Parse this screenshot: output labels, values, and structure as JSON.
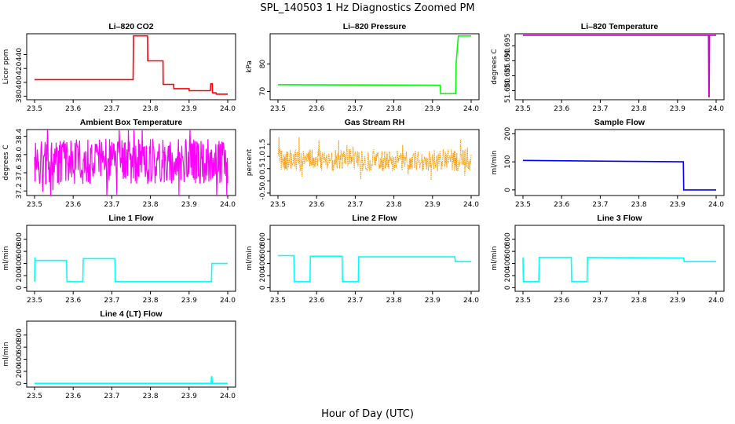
{
  "page": {
    "title": "SPL_140503  1 Hz Diagnostics Zoomed PM",
    "xlabel": "Hour of Day (UTC)"
  },
  "chart_data": [
    {
      "id": "co2",
      "type": "line",
      "title": "Li–820 CO2",
      "ylabel": "Licor ppm",
      "color": "#ff0000",
      "xlim": [
        23.5,
        24.0
      ],
      "ylim": [
        375,
        470
      ],
      "xticks": [
        23.5,
        23.6,
        23.7,
        23.8,
        23.9,
        24.0
      ],
      "yticks": [
        380,
        400,
        420,
        440
      ],
      "series": [
        {
          "x": [
            23.5,
            23.755,
            23.756,
            23.7925,
            23.793,
            23.8325,
            23.833,
            23.86,
            23.8605,
            23.9,
            23.9005,
            23.955,
            23.956,
            23.96,
            23.9605,
            23.97,
            23.9705,
            24.0
          ],
          "y": [
            404,
            404,
            467,
            467,
            431,
            431,
            397,
            397,
            391,
            391,
            388,
            388,
            398,
            398,
            385,
            385,
            383,
            383
          ]
        }
      ]
    },
    {
      "id": "pressure",
      "type": "line",
      "title": "Li–820 Pressure",
      "ylabel": "kPa",
      "color": "#00ff00",
      "xlim": [
        23.5,
        24.0
      ],
      "ylim": [
        67,
        91
      ],
      "xticks": [
        23.5,
        23.6,
        23.7,
        23.8,
        23.9,
        24.0
      ],
      "yticks": [
        70,
        80
      ],
      "series": [
        {
          "x": [
            23.5,
            23.92,
            23.921,
            23.96,
            23.961,
            23.966,
            23.967,
            24.0
          ],
          "y": [
            72.5,
            72.3,
            69.2,
            69.2,
            80,
            89,
            90.2,
            90.2
          ]
        }
      ]
    },
    {
      "id": "temperature",
      "type": "line",
      "title": "Li–820 Temperature",
      "ylabel": "degrees C",
      "color": "#cc00cc",
      "xlim": [
        23.5,
        24.0
      ],
      "ylim": [
        51.677,
        51.699
      ],
      "xticks": [
        23.5,
        23.6,
        23.7,
        23.8,
        23.9,
        24.0
      ],
      "yticks": [
        51.68,
        51.685,
        51.69,
        51.695
      ],
      "series": [
        {
          "x": [
            23.5,
            23.98,
            23.981,
            23.982,
            23.983,
            24.0
          ],
          "y": [
            51.6985,
            51.6985,
            51.678,
            51.678,
            51.6985,
            51.6985
          ]
        }
      ]
    },
    {
      "id": "ambient",
      "type": "line",
      "title": "Ambient Box Temperature",
      "ylabel": "degrees C",
      "color": "#ff00ff",
      "xlim": [
        23.5,
        24.0
      ],
      "ylim": [
        37.1,
        38.55
      ],
      "xticks": [
        23.5,
        23.6,
        23.7,
        23.8,
        23.9,
        24.0
      ],
      "yticks": [
        37.2,
        37.6,
        38.0,
        38.4
      ],
      "series": [
        {
          "pattern": "noisy",
          "mid": 37.85,
          "amp": 0.5,
          "x0": 23.5,
          "x1": 24.0
        }
      ]
    },
    {
      "id": "rh",
      "type": "line",
      "title": "Gas Stream RH",
      "ylabel": "percent",
      "color": "#ff9900",
      "xlim": [
        23.5,
        24.0
      ],
      "ylim": [
        -0.6,
        2.1
      ],
      "xticks": [
        23.5,
        23.6,
        23.7,
        23.8,
        23.9,
        24.0
      ],
      "yticks": [
        -0.5,
        0.0,
        0.5,
        1.0,
        1.5
      ],
      "series": [
        {
          "pattern": "noisy-dots",
          "mid": 0.85,
          "amp": 0.45,
          "x0": 23.5,
          "x1": 24.0
        }
      ]
    },
    {
      "id": "sample",
      "type": "line",
      "title": "Sample Flow",
      "ylabel": "ml/min",
      "color": "#0000ff",
      "xlim": [
        23.5,
        24.0
      ],
      "ylim": [
        -20,
        215
      ],
      "xticks": [
        23.5,
        23.6,
        23.7,
        23.8,
        23.9,
        24.0
      ],
      "yticks": [
        0,
        100,
        200
      ],
      "series": [
        {
          "x": [
            23.5,
            23.915,
            23.916,
            24.0
          ],
          "y": [
            105,
            100,
            0,
            0
          ]
        }
      ]
    },
    {
      "id": "line1",
      "type": "line",
      "title": "Line 1 Flow",
      "ylabel": "ml/min",
      "color": "#00ffff",
      "xlim": [
        23.5,
        24.0
      ],
      "ylim": [
        -60,
        1030
      ],
      "xticks": [
        23.5,
        23.6,
        23.7,
        23.8,
        23.9,
        24.0
      ],
      "yticks": [
        0,
        200,
        400,
        600,
        800
      ],
      "series": [
        {
          "x": [
            23.5,
            23.501,
            23.502,
            23.583,
            23.584,
            23.625,
            23.626,
            23.708,
            23.709,
            23.958,
            23.959,
            24.0
          ],
          "y": [
            100,
            500,
            450,
            450,
            100,
            100,
            480,
            480,
            100,
            100,
            400,
            400
          ]
        }
      ]
    },
    {
      "id": "line2",
      "type": "line",
      "title": "Line 2 Flow",
      "ylabel": "ml/min",
      "color": "#00ffff",
      "xlim": [
        23.5,
        24.0
      ],
      "ylim": [
        -60,
        1030
      ],
      "xticks": [
        23.5,
        23.6,
        23.7,
        23.8,
        23.9,
        24.0
      ],
      "yticks": [
        0,
        200,
        400,
        600,
        800
      ],
      "series": [
        {
          "x": [
            23.5,
            23.541,
            23.542,
            23.583,
            23.584,
            23.666,
            23.667,
            23.708,
            23.709,
            23.958,
            23.959,
            24.0
          ],
          "y": [
            530,
            530,
            100,
            100,
            520,
            520,
            100,
            100,
            510,
            510,
            430,
            430
          ]
        }
      ]
    },
    {
      "id": "line3",
      "type": "line",
      "title": "Line 3 Flow",
      "ylabel": "ml/min",
      "color": "#00ffff",
      "xlim": [
        23.5,
        24.0
      ],
      "ylim": [
        -60,
        1030
      ],
      "xticks": [
        23.5,
        23.6,
        23.7,
        23.8,
        23.9,
        24.0
      ],
      "yticks": [
        0,
        200,
        400,
        600,
        800
      ],
      "series": [
        {
          "x": [
            23.5,
            23.501,
            23.502,
            23.541,
            23.542,
            23.625,
            23.626,
            23.666,
            23.667,
            23.916,
            23.917,
            24.0
          ],
          "y": [
            500,
            100,
            100,
            100,
            500,
            500,
            100,
            100,
            500,
            490,
            430,
            430
          ]
        }
      ]
    },
    {
      "id": "line4",
      "type": "line",
      "title": "Line 4 (LT) Flow",
      "ylabel": "ml/min",
      "color": "#00ffff",
      "xlim": [
        23.5,
        24.0
      ],
      "ylim": [
        -60,
        1030
      ],
      "xticks": [
        23.5,
        23.6,
        23.7,
        23.8,
        23.9,
        24.0
      ],
      "yticks": [
        0,
        200,
        400,
        600,
        800
      ],
      "series": [
        {
          "x": [
            23.5,
            23.957,
            23.958,
            23.959,
            23.96,
            24.0
          ],
          "y": [
            2,
            2,
            110,
            110,
            2,
            2
          ]
        }
      ]
    }
  ]
}
